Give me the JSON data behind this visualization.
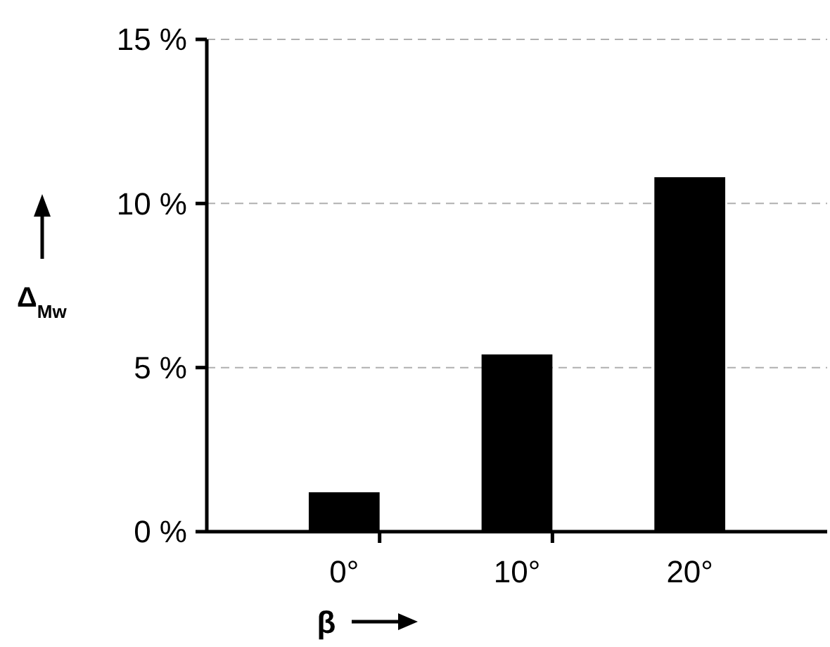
{
  "chart_data": {
    "type": "bar",
    "xlabel": "β",
    "ylabel": "Δ$_{Mw}$",
    "categories": [
      "0°",
      "10°",
      "20°"
    ],
    "values": [
      1.2,
      5.4,
      10.8
    ],
    "color": "#000000",
    "ylim": [
      0,
      15
    ],
    "yticks": [
      {
        "value": 0,
        "label": "0 %"
      },
      {
        "value": 5,
        "label": "5 %"
      },
      {
        "value": 10,
        "label": "10 %"
      },
      {
        "value": 15,
        "label": "15 %"
      }
    ],
    "grid": "y"
  }
}
